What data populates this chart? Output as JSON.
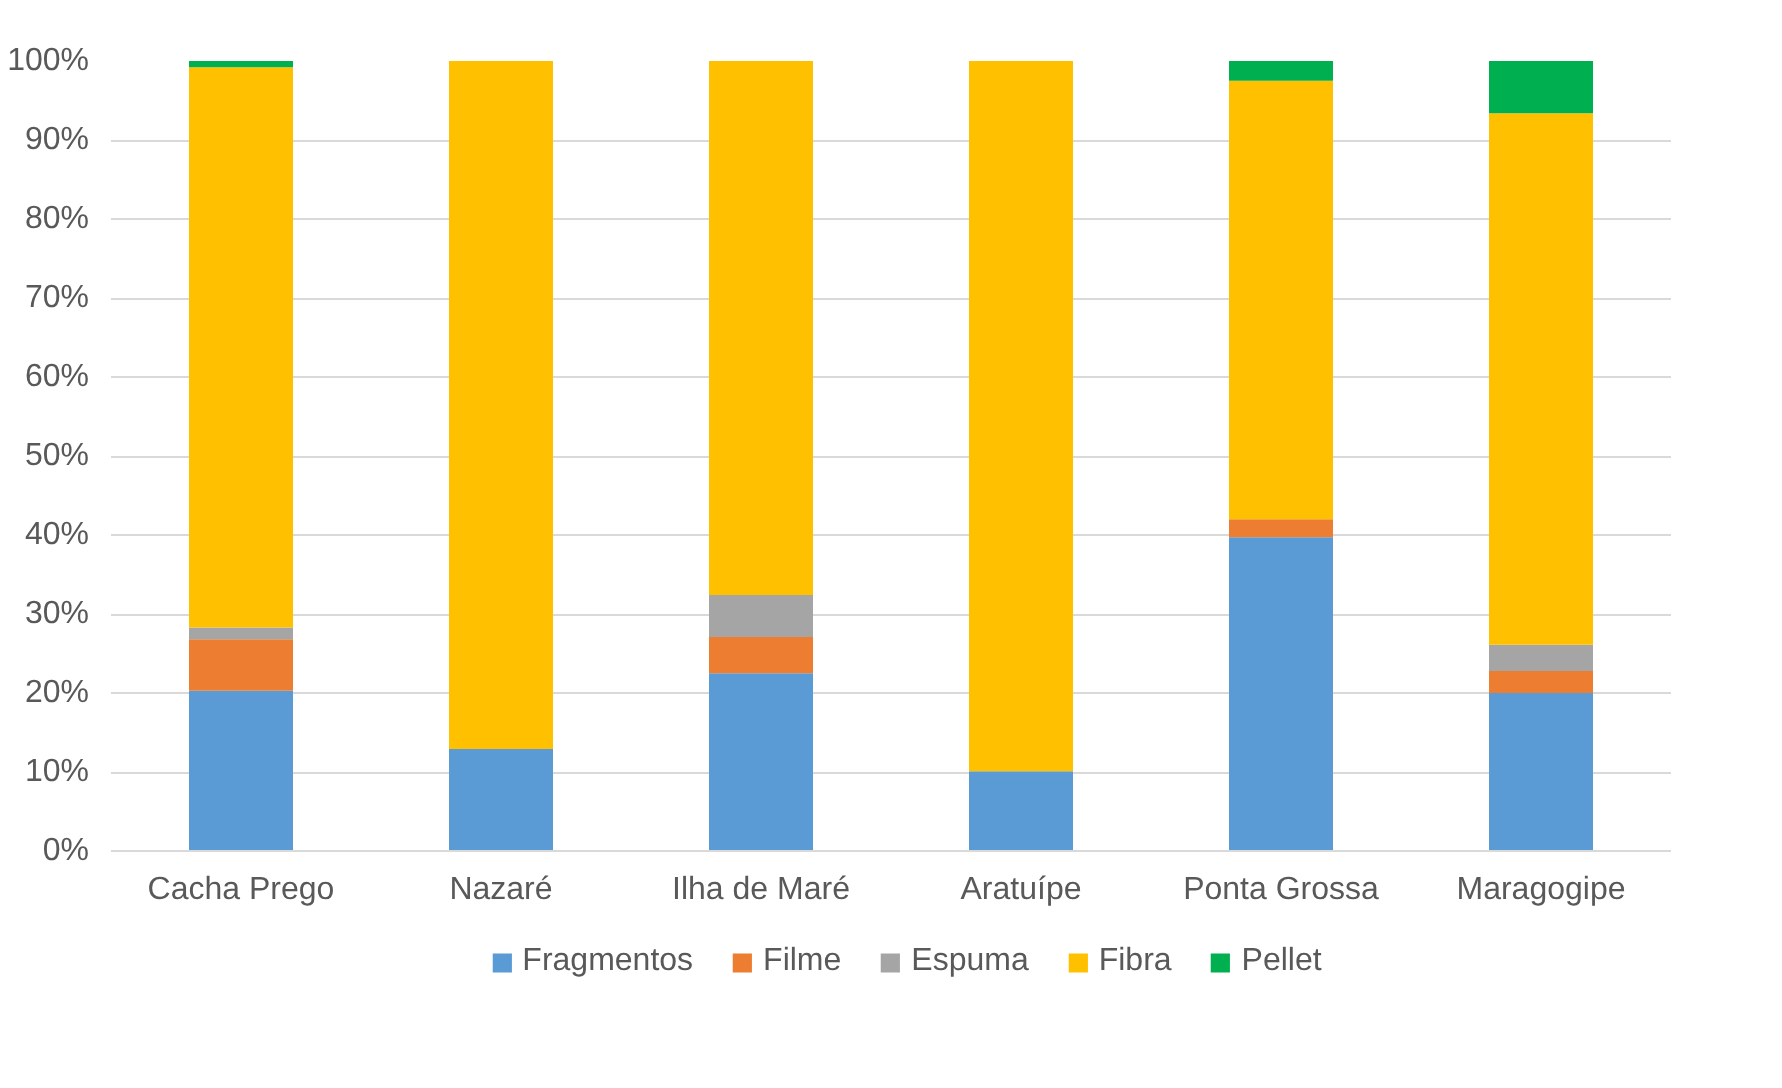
{
  "chart_data": {
    "type": "bar",
    "stacked": true,
    "categories": [
      "Cacha Prego",
      "Nazaré",
      "Ilha de Maré",
      "Aratuípe",
      "Ponta Grossa",
      "Maragogipe"
    ],
    "series": [
      {
        "name": "Fragmentos",
        "color": "#5b9bd5",
        "values": [
          20.3,
          12.9,
          22.5,
          10.1,
          39.7,
          20.0
        ]
      },
      {
        "name": "Filme",
        "color": "#ed7d31",
        "values": [
          6.5,
          0,
          4.6,
          0,
          2.3,
          2.8
        ]
      },
      {
        "name": "Espuma",
        "color": "#a5a5a5",
        "values": [
          1.5,
          0,
          5.3,
          0,
          0,
          3.3
        ]
      },
      {
        "name": "Fibra",
        "color": "#ffc000",
        "values": [
          70.9,
          87.1,
          67.6,
          89.9,
          55.5,
          67.3
        ]
      },
      {
        "name": "Pellet",
        "color": "#00b050",
        "values": [
          0.8,
          0,
          0,
          0,
          2.5,
          6.6
        ]
      }
    ],
    "ylim": [
      0,
      100
    ],
    "yticks": [
      {
        "value": 0,
        "label": "0%"
      },
      {
        "value": 10,
        "label": "10%"
      },
      {
        "value": 20,
        "label": "20%"
      },
      {
        "value": 30,
        "label": "30%"
      },
      {
        "value": 40,
        "label": "40%"
      },
      {
        "value": 50,
        "label": "50%"
      },
      {
        "value": 60,
        "label": "60%"
      },
      {
        "value": 70,
        "label": "70%"
      },
      {
        "value": 80,
        "label": "80%"
      },
      {
        "value": 90,
        "label": "90%"
      },
      {
        "value": 100,
        "label": "100%"
      }
    ],
    "grid": "y",
    "legend": "bottom"
  }
}
